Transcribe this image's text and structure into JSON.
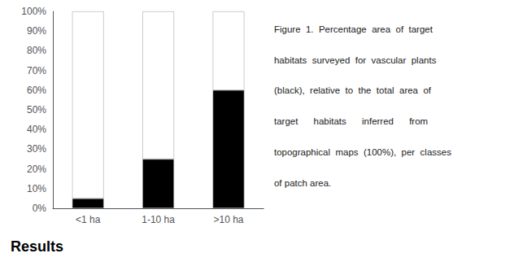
{
  "chart_data": {
    "type": "bar",
    "stacked": true,
    "categories": [
      "<1 ha",
      "1-10 ha",
      ">10 ha"
    ],
    "series": [
      {
        "color": "#000000",
        "values": [
          5,
          25,
          60
        ]
      },
      {
        "color": "#ffffff",
        "values": [
          95,
          75,
          40
        ]
      }
    ],
    "ylim": [
      0,
      100
    ],
    "yticks": [
      {
        "value": 0,
        "label": "0%"
      },
      {
        "value": 10,
        "label": "10%"
      },
      {
        "value": 20,
        "label": "20%"
      },
      {
        "value": 30,
        "label": "30%"
      },
      {
        "value": 40,
        "label": "40%"
      },
      {
        "value": 50,
        "label": "50%"
      },
      {
        "value": 60,
        "label": "60%"
      },
      {
        "value": 70,
        "label": "70%"
      },
      {
        "value": 80,
        "label": "80%"
      },
      {
        "value": 90,
        "label": "90%"
      },
      {
        "value": 100,
        "label": "100%"
      }
    ],
    "grid": false,
    "annotations": [
      "Figure  1.  Percentage  area  of  target",
      "habitats  surveyed  for  vascular  plants",
      "(black),  relative  to  the  total  area  of",
      "target      habitats      inferred      from",
      "topographical  maps  (100%),  per  classes",
      "of patch area.",
      "Results"
    ]
  }
}
